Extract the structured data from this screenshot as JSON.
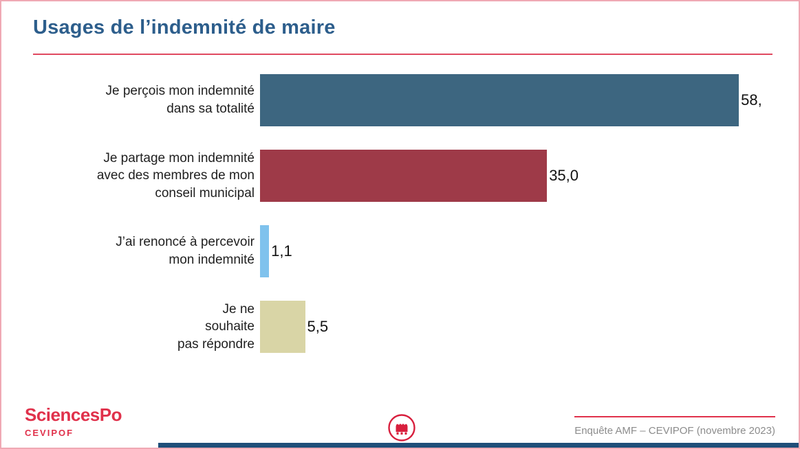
{
  "slide": {
    "title": "Usages de l’indemnité de maire",
    "footer": {
      "brand": "SciencesPo",
      "sub_brand": "CEVIPOF",
      "source": "Enquête AMF – CEVIPOF (novembre 2023)"
    },
    "colors": {
      "title_blue": "#2d5e8c",
      "accent_red": "#e0314b",
      "bottom_strip_blue": "#1f4e79"
    }
  },
  "chart_data": {
    "type": "bar",
    "orientation": "horizontal",
    "title": "Usages de l’indemnité de maire",
    "categories": [
      "Je perçois mon indemnité\ndans sa totalité",
      "Je partage mon indemnité\navec des membres de mon\nconseil municipal",
      "J’ai renoncé à percevoir\nmon indemnité",
      "Je ne\nsouhaite\npas répondre"
    ],
    "values": [
      58.4,
      35.0,
      1.1,
      5.5
    ],
    "value_labels": [
      "58,",
      "35,0",
      "1,1",
      "5,5"
    ],
    "bar_colors": [
      "#3d6680",
      "#9e3a48",
      "#7fc2ed",
      "#d9d5a6"
    ],
    "xlim": [
      0,
      60
    ],
    "grid": false,
    "legend": false
  }
}
